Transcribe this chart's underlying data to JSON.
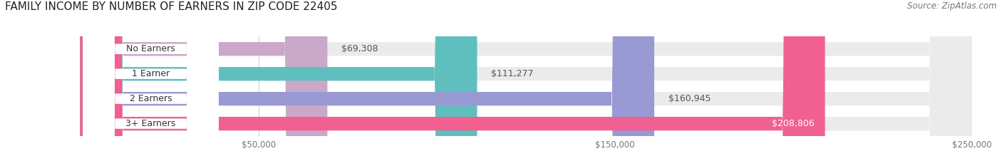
{
  "title": "FAMILY INCOME BY NUMBER OF EARNERS IN ZIP CODE 22405",
  "source": "Source: ZipAtlas.com",
  "categories": [
    "No Earners",
    "1 Earner",
    "2 Earners",
    "3+ Earners"
  ],
  "values": [
    69308,
    111277,
    160945,
    208806
  ],
  "labels": [
    "$69,308",
    "$111,277",
    "$160,945",
    "$208,806"
  ],
  "bar_colors": [
    "#c9a8c8",
    "#5fbfbf",
    "#9999d4",
    "#f06090"
  ],
  "bar_bg_color": "#ebebeb",
  "xmin": 0,
  "xmax": 250000,
  "xticks": [
    50000,
    150000,
    250000
  ],
  "xtick_labels": [
    "$50,000",
    "$150,000",
    "$250,000"
  ],
  "title_fontsize": 11,
  "source_fontsize": 8.5,
  "bar_label_fontsize": 9,
  "category_fontsize": 9,
  "background_color": "#ffffff",
  "figure_width": 14.06,
  "figure_height": 2.33
}
